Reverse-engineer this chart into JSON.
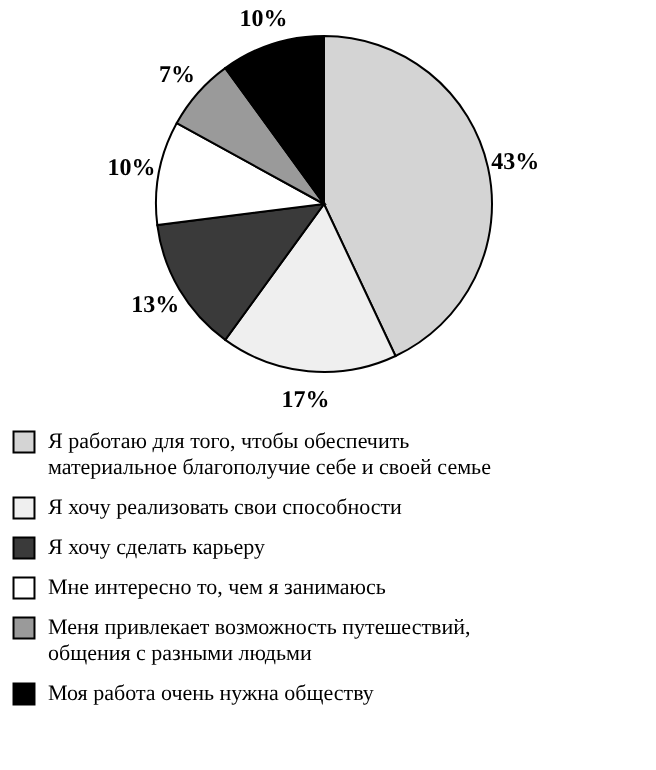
{
  "chart_data": {
    "type": "pie",
    "categories": [
      "Я работаю для того, чтобы обеспечить материальное благополучие себе и своей семье",
      "Я хочу реализовать свои способности",
      "Я хочу сделать карьеру",
      "Мне интересно то, чем я занимаюсь",
      "Меня привлекает возможность путешествий, общения с разными людьми",
      "Моя работа очень нужна обществу"
    ],
    "values": [
      43,
      17,
      13,
      10,
      7,
      10
    ],
    "colors": [
      "#d4d4d4",
      "#efefef",
      "#3a3a3a",
      "#ffffff",
      "#9a9a9a",
      "#000000"
    ],
    "value_labels": [
      "43%",
      "17%",
      "13%",
      "10%",
      "7%",
      "10%"
    ],
    "legend": "bottom"
  }
}
